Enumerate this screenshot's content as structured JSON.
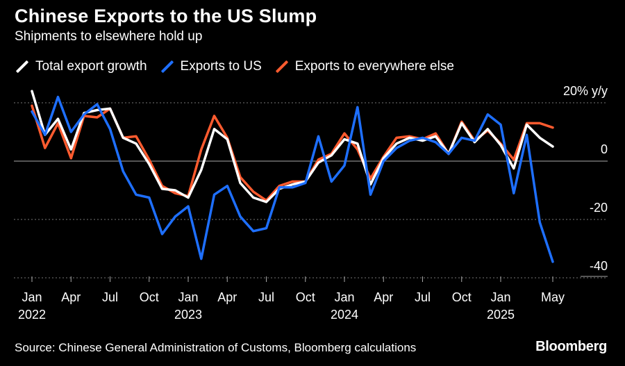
{
  "header": {
    "title": "Chinese Exports to the US Slump",
    "subtitle": "Shipments to elsewhere hold up"
  },
  "footer": {
    "source": "Source: Chinese General Administration of Customs, Bloomberg calculations",
    "brand": "Bloomberg"
  },
  "chart_data": {
    "type": "line",
    "ylim": [
      -42,
      22
    ],
    "y_ticks": [
      20,
      0,
      -20,
      -40
    ],
    "y_tick_labels": [
      "20% y/y",
      "0",
      "-20",
      "-40"
    ],
    "x_ticks": [
      {
        "label": "Jan",
        "year": "2022",
        "index": 0
      },
      {
        "label": "Apr",
        "year": "",
        "index": 3
      },
      {
        "label": "Jul",
        "year": "",
        "index": 6
      },
      {
        "label": "Oct",
        "year": "",
        "index": 9
      },
      {
        "label": "Jan",
        "year": "2023",
        "index": 12
      },
      {
        "label": "Apr",
        "year": "",
        "index": 15
      },
      {
        "label": "Jul",
        "year": "",
        "index": 18
      },
      {
        "label": "Oct",
        "year": "",
        "index": 21
      },
      {
        "label": "Jan",
        "year": "2024",
        "index": 24
      },
      {
        "label": "Apr",
        "year": "",
        "index": 27
      },
      {
        "label": "Jul",
        "year": "",
        "index": 30
      },
      {
        "label": "Oct",
        "year": "",
        "index": 33
      },
      {
        "label": "Jan",
        "year": "2025",
        "index": 36
      },
      {
        "label": "May",
        "year": "",
        "index": 40
      }
    ],
    "grid": true,
    "legend_position": "top-left",
    "series": [
      {
        "name": "Total export growth",
        "color": "#ffffff",
        "values": [
          24,
          9,
          14.5,
          4,
          16.5,
          17.5,
          18,
          8,
          6,
          -1,
          -9.5,
          -10,
          -12.5,
          -3,
          11,
          7.5,
          -7.5,
          -12.5,
          -14,
          -9.5,
          -8,
          -7,
          -0.5,
          2,
          7.5,
          6,
          -8,
          1,
          6,
          8,
          7,
          8.5,
          2.5,
          13,
          6.5,
          11,
          5.5,
          -2.5,
          12.5,
          8,
          5
        ]
      },
      {
        "name": "Exports to US",
        "color": "#1e6fff",
        "values": [
          17,
          9,
          22,
          10,
          16,
          19.5,
          11,
          -3.5,
          -11.5,
          -12.5,
          -25,
          -19,
          -15.5,
          -33.5,
          -11.5,
          -8.5,
          -19,
          -24,
          -23,
          -9,
          -9,
          -7.5,
          8.5,
          -7,
          -1.5,
          18.5,
          -11.5,
          0,
          4.5,
          7,
          8,
          6.5,
          2.5,
          8,
          7,
          16,
          12.5,
          -11,
          9,
          -21,
          -34.5
        ]
      },
      {
        "name": "Exports to everywhere else",
        "color": "#ff5b2f",
        "values": [
          19,
          4.5,
          13,
          1,
          15.5,
          15,
          18,
          8,
          8.5,
          0.5,
          -8.5,
          -11,
          -12,
          4,
          15.5,
          8,
          -5.5,
          -10.5,
          -13.5,
          -8.5,
          -7,
          -7,
          0.5,
          2.5,
          9.5,
          4,
          -6,
          1.5,
          8,
          8.5,
          7.5,
          9.5,
          2.5,
          13.5,
          7,
          10.5,
          6,
          0.5,
          13,
          13,
          11.5
        ]
      }
    ]
  }
}
